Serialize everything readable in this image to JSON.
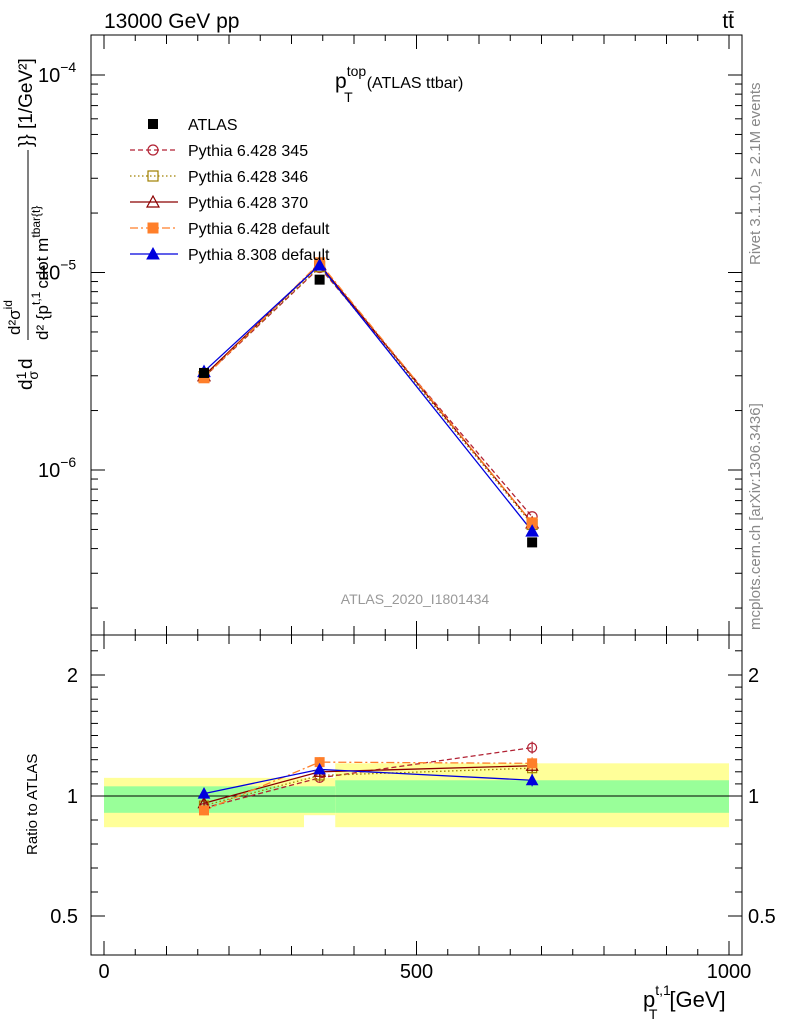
{
  "header": {
    "energy_label": "13000 GeV pp",
    "process_label": "tt̄"
  },
  "chart_data": {
    "type": "line",
    "title_main": "p",
    "title_sup": "top",
    "title_sub": "T",
    "title_suffix": "(ATLAS ttbar)",
    "analysis_id": "ATLAS_2020_I1801434",
    "side_labels": {
      "rivet": "Rivet 3.1.10, ≥ 2.1M events",
      "mcplots": "mcplots.cern.ch [arXiv:1306.3436]"
    },
    "ylabel_main": "d²σ^{id} / d² {p_T^{t,1} cdot m^{tbar{t}}} [1/GeV²]",
    "ylabel_main_parts": {
      "frac_num": "d",
      "frac_num2": "1",
      "frac_den": "σ",
      "d2sigma": "d²σ",
      "sigma_sup": "id",
      "denominator": "d² {p",
      "den_sup": "t,1",
      "den_rest": "cdot m",
      "den_sup2": "tbar{t}",
      "units": "}} [1/GeV²]"
    },
    "ylabel_ratio": "Ratio to ATLAS",
    "xlabel": "p",
    "xlabel_sup": "t,1",
    "xlabel_sub": "T",
    "xlabel_units": "[GeV]",
    "x_range": [
      0,
      1000
    ],
    "x_ticks": [
      0,
      500,
      1000
    ],
    "x_tick_labels": [
      "0",
      "500",
      "1000"
    ],
    "y_scale": "log",
    "y_range": [
      1.7e-07,
      0.00016
    ],
    "y_ticks": [
      {
        "mantissa": "10",
        "exponent": "−4",
        "value": 0.0001
      },
      {
        "mantissa": "10",
        "exponent": "−5",
        "value": 1e-05
      },
      {
        "mantissa": "10",
        "exponent": "−6",
        "value": 1e-06
      }
    ],
    "ratio_range": [
      0.35,
      2.45
    ],
    "ratio_ticks": [
      "2",
      "1",
      "0.5"
    ],
    "ratio_tick_values": [
      2,
      1,
      0.5
    ],
    "bins": [
      [
        0,
        320
      ],
      [
        320,
        370
      ],
      [
        370,
        1000
      ]
    ],
    "x": [
      160,
      345,
      685
    ],
    "data": {
      "name": "ATLAS",
      "values": [
        3.1e-06,
        9.2e-06,
        4.3e-07
      ],
      "band_inner": [
        [
          0.93,
          1.08
        ],
        [
          0.93,
          1.08
        ],
        [
          0.93,
          1.13
        ]
      ],
      "band_outer": [
        [
          0.87,
          1.15
        ],
        [
          0.92,
          1.15
        ],
        [
          0.87,
          1.27
        ]
      ]
    },
    "series": [
      {
        "name": "Pythia 6.428 345",
        "color": "#b22234",
        "dash": "5,3",
        "marker": "circle-open",
        "values": [
          2.95e-06,
          1.06e-05,
          5.8e-07
        ],
        "ratio": [
          0.95,
          1.15,
          1.4
        ],
        "ratio_err": [
          0.02,
          0.03,
          0.05
        ]
      },
      {
        "name": "Pythia 6.428 346",
        "color": "#a08000",
        "dash": "1.5,2.5",
        "marker": "square-open",
        "values": [
          2.97e-06,
          1.07e-05,
          5.3e-07
        ],
        "ratio": [
          0.96,
          1.17,
          1.23
        ],
        "ratio_err": [
          0.02,
          0.03,
          0.05
        ]
      },
      {
        "name": "Pythia 6.428 370",
        "color": "#8b0000",
        "dash": "",
        "marker": "triangle-open",
        "values": [
          3e-06,
          1.1e-05,
          5.4e-07
        ],
        "ratio": [
          0.97,
          1.2,
          1.25
        ],
        "ratio_err": [
          0.02,
          0.03,
          0.05
        ]
      },
      {
        "name": "Pythia 6.428 default",
        "color": "#ff7f2a",
        "dash": "8,3,2,3",
        "marker": "square-filled",
        "values": [
          2.93e-06,
          1.12e-05,
          5.4e-07
        ],
        "ratio": [
          0.94,
          1.28,
          1.27
        ],
        "ratio_err": [
          0.02,
          0.04,
          0.05
        ]
      },
      {
        "name": "Pythia 8.308 default",
        "color": "#0000dd",
        "dash": "",
        "marker": "triangle-filled",
        "values": [
          3.15e-06,
          1.09e-05,
          4.9e-07
        ],
        "ratio": [
          1.02,
          1.22,
          1.13
        ],
        "ratio_err": [
          0.02,
          0.03,
          0.05
        ]
      }
    ]
  }
}
